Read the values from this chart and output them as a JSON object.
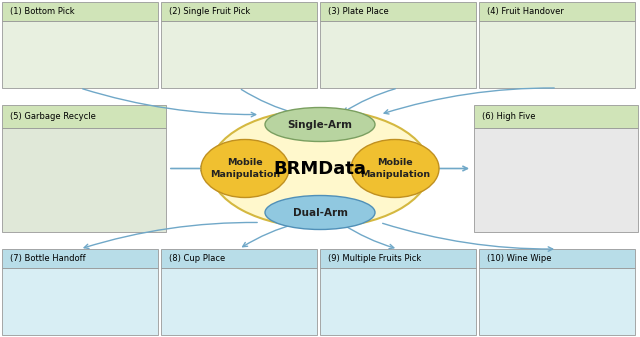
{
  "outer_ellipse_color": "#FFF8CC",
  "outer_ellipse_edge": "#D4B840",
  "single_arm_color": "#B8D4A0",
  "single_arm_edge": "#7A9F60",
  "dual_arm_color": "#90C8E0",
  "dual_arm_edge": "#5090B8",
  "mobile_manip_color": "#F0C030",
  "mobile_manip_edge": "#C09020",
  "arrow_color": "#70A8C8",
  "top_labels": [
    "(1) Bottom Pick",
    "(2) Single Fruit Pick",
    "(3) Plate Place",
    "(4) Fruit Handover"
  ],
  "bottom_labels": [
    "(7) Bottle Handoff",
    "(8) Cup Place",
    "(9) Multiple Fruits Pick",
    "(10) Wine Wipe"
  ],
  "left_label": "(5) Garbage Recycle",
  "right_label": "(6) High Five",
  "top_photo_color": "#E8F0E0",
  "bottom_photo_color": "#D8EEF4",
  "left_photo_color": "#E0E8D8",
  "right_photo_color": "#E8E8E8",
  "top_label_bg": "#D0E4B8",
  "bottom_label_bg": "#B8DDE8",
  "side_label_bg": "#D0E4B8"
}
